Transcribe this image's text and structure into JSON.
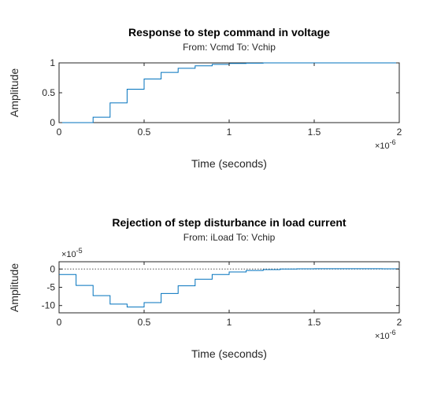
{
  "chart_data": [
    {
      "type": "line",
      "step": true,
      "title": "Response to step command in voltage",
      "subtitle": "From: Vcmd  To: Vchip",
      "xlabel": "Time (seconds)",
      "ylabel": "Amplitude",
      "x_exponent": "×10",
      "x_exponent_power": "-6",
      "y_exponent": "",
      "y_exponent_power": "",
      "xlim": [
        0,
        2
      ],
      "ylim": [
        0,
        1
      ],
      "xticks": [
        0,
        0.5,
        1,
        1.5,
        2
      ],
      "xtick_labels": [
        "0",
        "0.5",
        "1",
        "1.5",
        "2"
      ],
      "yticks": [
        0,
        0.5,
        1
      ],
      "ytick_labels": [
        "0",
        "0.5",
        "1"
      ],
      "reference_line": 1,
      "x": [
        0,
        0.1,
        0.2,
        0.3,
        0.4,
        0.5,
        0.6,
        0.7,
        0.8,
        0.9,
        1.0,
        1.1,
        1.2,
        1.3,
        1.4,
        1.5,
        1.6,
        1.7,
        1.8,
        1.9,
        2.0
      ],
      "values": [
        0,
        0,
        0.09,
        0.33,
        0.56,
        0.73,
        0.84,
        0.91,
        0.95,
        0.975,
        0.99,
        0.995,
        1,
        1,
        1,
        1,
        1,
        1,
        1,
        1,
        1
      ],
      "color": "#0072BD"
    },
    {
      "type": "line",
      "step": true,
      "title": "Rejection of step disturbance in load current",
      "subtitle": "From: iLoad  To: Vchip",
      "xlabel": "Time (seconds)",
      "ylabel": "Amplitude",
      "x_exponent": "×10",
      "x_exponent_power": "-6",
      "y_exponent": "×10",
      "y_exponent_power": "-5",
      "xlim": [
        0,
        2
      ],
      "ylim": [
        -12,
        2
      ],
      "xticks": [
        0,
        0.5,
        1,
        1.5,
        2
      ],
      "xtick_labels": [
        "0",
        "0.5",
        "1",
        "1.5",
        "2"
      ],
      "yticks": [
        -10,
        -5,
        0
      ],
      "ytick_labels": [
        "-10",
        "-5",
        "0"
      ],
      "reference_line": 0,
      "x": [
        0,
        0.1,
        0.2,
        0.3,
        0.4,
        0.5,
        0.6,
        0.7,
        0.8,
        0.9,
        1.0,
        1.1,
        1.2,
        1.3,
        1.4,
        1.5,
        1.6,
        1.7,
        1.8,
        1.9,
        2.0
      ],
      "values": [
        -1.5,
        -4.5,
        -7.3,
        -9.6,
        -10.4,
        -9.2,
        -6.7,
        -4.6,
        -2.8,
        -1.5,
        -0.8,
        -0.4,
        -0.15,
        0,
        0.05,
        0.08,
        0.1,
        0.1,
        0.1,
        0.05,
        0
      ],
      "color": "#0072BD"
    }
  ]
}
